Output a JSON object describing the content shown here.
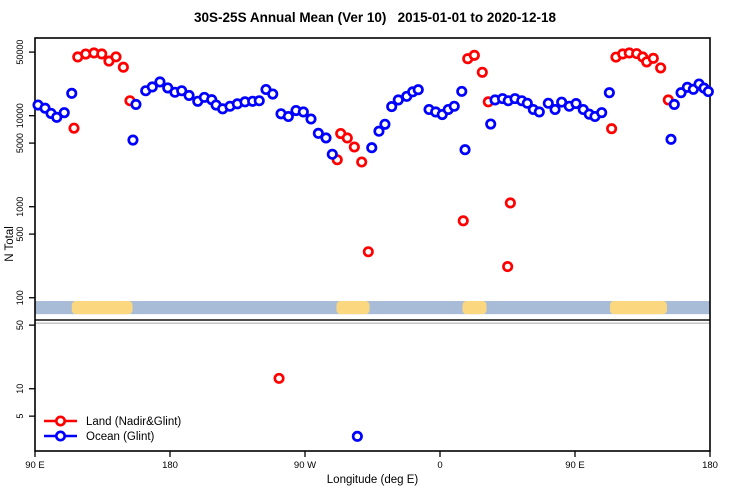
{
  "title": "30S-25S Annual Mean (Ver 10)   2015-01-01 to 2020-12-18",
  "chart_data": {
    "type": "scatter",
    "title": "30S-25S Annual Mean (Ver 10)   2015-01-01 to 2020-12-18",
    "xlabel": "Longitude (deg E)",
    "ylabel": "N Total",
    "x_axis": {
      "lim": [
        90,
        540
      ],
      "tick_positions": [
        90,
        180,
        270,
        360,
        450,
        540
      ],
      "tick_labels": [
        "90 E",
        "180",
        "90 W",
        "0",
        "90 E",
        "180"
      ],
      "note": "longitude axis spans 450 degrees; the 90E-180 sector is shown twice (wraparound)"
    },
    "y_axis": {
      "scale": "log10",
      "lim": [
        2.07,
        71400
      ],
      "tick_values": [
        50000,
        10000,
        5000,
        1000,
        500,
        100,
        50,
        10,
        5
      ],
      "tick_labels": [
        "50000",
        "10000",
        "5000",
        "1000",
        "500",
        "100",
        "50",
        "10",
        "5"
      ],
      "labels_rotated": true
    },
    "grid": false,
    "legend": {
      "position": "bottom-left-inside",
      "entries": [
        {
          "label": "Land (Nadir&Glint)",
          "color": "#ff0000"
        },
        {
          "label": "Ocean (Glint)",
          "color": "#0000ff"
        }
      ]
    },
    "marker": {
      "shape": "open-circle",
      "radius": 4.2,
      "stroke_width": 2.7,
      "fill": "#ffffff"
    },
    "series": [
      {
        "name": "Land (Nadir&Glint)",
        "color": "#ff0000",
        "points": [
          [
            116.0,
            7300
          ],
          [
            118.5,
            44200
          ],
          [
            123.8,
            47600
          ],
          [
            129.3,
            48900
          ],
          [
            134.5,
            47700
          ],
          [
            139.3,
            39800
          ],
          [
            144.0,
            44300
          ],
          [
            148.9,
            34100
          ],
          [
            153.3,
            14600
          ],
          [
            252.7,
            13
          ],
          [
            291.5,
            3280
          ],
          [
            293.8,
            6370
          ],
          [
            298.2,
            5690
          ],
          [
            302.9,
            4530
          ],
          [
            307.8,
            3100
          ],
          [
            312.2,
            320
          ],
          [
            375.5,
            700
          ],
          [
            378.5,
            42300
          ],
          [
            382.9,
            46100
          ],
          [
            388.2,
            30000
          ],
          [
            392.2,
            14200
          ],
          [
            405.1,
            220
          ],
          [
            406.9,
            1100
          ],
          [
            474.4,
            7200
          ],
          [
            477.3,
            44000
          ],
          [
            481.8,
            47700
          ],
          [
            486.2,
            48900
          ],
          [
            491.1,
            48100
          ],
          [
            495.1,
            44200
          ],
          [
            497.8,
            39000
          ],
          [
            502.2,
            42700
          ],
          [
            507.1,
            33500
          ],
          [
            512.2,
            14900
          ]
        ]
      },
      {
        "name": "Ocean (Glint)",
        "color": "#0000ff",
        "points": [
          [
            92.0,
            13100
          ],
          [
            96.7,
            12100
          ],
          [
            100.7,
            10600
          ],
          [
            104.5,
            9600
          ],
          [
            109.5,
            10800
          ],
          [
            114.5,
            17600
          ],
          [
            155.3,
            5400
          ],
          [
            157.3,
            13300
          ],
          [
            163.8,
            18800
          ],
          [
            168.2,
            20700
          ],
          [
            173.3,
            23500
          ],
          [
            178.5,
            20200
          ],
          [
            183.3,
            18100
          ],
          [
            187.8,
            18800
          ],
          [
            192.7,
            16700
          ],
          [
            198.5,
            14400
          ],
          [
            202.9,
            15900
          ],
          [
            207.8,
            15000
          ],
          [
            210.7,
            13100
          ],
          [
            215.1,
            11900
          ],
          [
            220.0,
            12700
          ],
          [
            224.9,
            13500
          ],
          [
            230.0,
            14200
          ],
          [
            235.1,
            14400
          ],
          [
            239.5,
            14600
          ],
          [
            244.0,
            19400
          ],
          [
            248.5,
            17300
          ],
          [
            254.0,
            10500
          ],
          [
            258.9,
            9800
          ],
          [
            264.0,
            11400
          ],
          [
            268.9,
            11000
          ],
          [
            274.0,
            9200
          ],
          [
            278.9,
            6400
          ],
          [
            284.0,
            5700
          ],
          [
            288.2,
            3770
          ],
          [
            304.9,
            3
          ],
          [
            314.5,
            4450
          ],
          [
            319.3,
            6750
          ],
          [
            323.3,
            8050
          ],
          [
            327.8,
            12600
          ],
          [
            332.2,
            14900
          ],
          [
            337.8,
            16300
          ],
          [
            341.8,
            18300
          ],
          [
            345.5,
            19300
          ],
          [
            352.7,
            11700
          ],
          [
            357.1,
            11000
          ],
          [
            361.5,
            10300
          ],
          [
            365.5,
            11700
          ],
          [
            369.5,
            12700
          ],
          [
            374.5,
            18500
          ],
          [
            376.7,
            4230
          ],
          [
            393.8,
            8100
          ],
          [
            396.7,
            14900
          ],
          [
            401.7,
            15400
          ],
          [
            405.5,
            14600
          ],
          [
            410.0,
            15400
          ],
          [
            414.5,
            14600
          ],
          [
            418.2,
            13700
          ],
          [
            422.2,
            11700
          ],
          [
            426.2,
            11000
          ],
          [
            432.2,
            13700
          ],
          [
            436.7,
            11700
          ],
          [
            441.1,
            14100
          ],
          [
            446.2,
            12700
          ],
          [
            450.7,
            13600
          ],
          [
            455.5,
            11700
          ],
          [
            459.5,
            10400
          ],
          [
            463.3,
            9800
          ],
          [
            467.8,
            10800
          ],
          [
            472.9,
            17900
          ],
          [
            514.0,
            5500
          ],
          [
            516.2,
            13300
          ],
          [
            520.7,
            17900
          ],
          [
            524.9,
            20500
          ],
          [
            528.9,
            19500
          ],
          [
            532.7,
            22300
          ],
          [
            536.0,
            20100
          ],
          [
            538.9,
            18400
          ]
        ]
      }
    ],
    "surface_strip": {
      "description": "land/ocean mask band",
      "band_values": [
        66,
        92
      ],
      "ocean_color": "#a8bcd8",
      "land_color": "#fbd87f",
      "land_segments_deg": [
        [
          114.5,
          155
        ],
        [
          291,
          313
        ],
        [
          375,
          391
        ],
        [
          473.3,
          511.3
        ]
      ]
    },
    "reference_lines": [
      {
        "value": 57,
        "color": "#4d4d4d",
        "width": 2
      },
      {
        "value": 52.5,
        "color": "#b3b3b3",
        "width": 1.2
      }
    ]
  }
}
